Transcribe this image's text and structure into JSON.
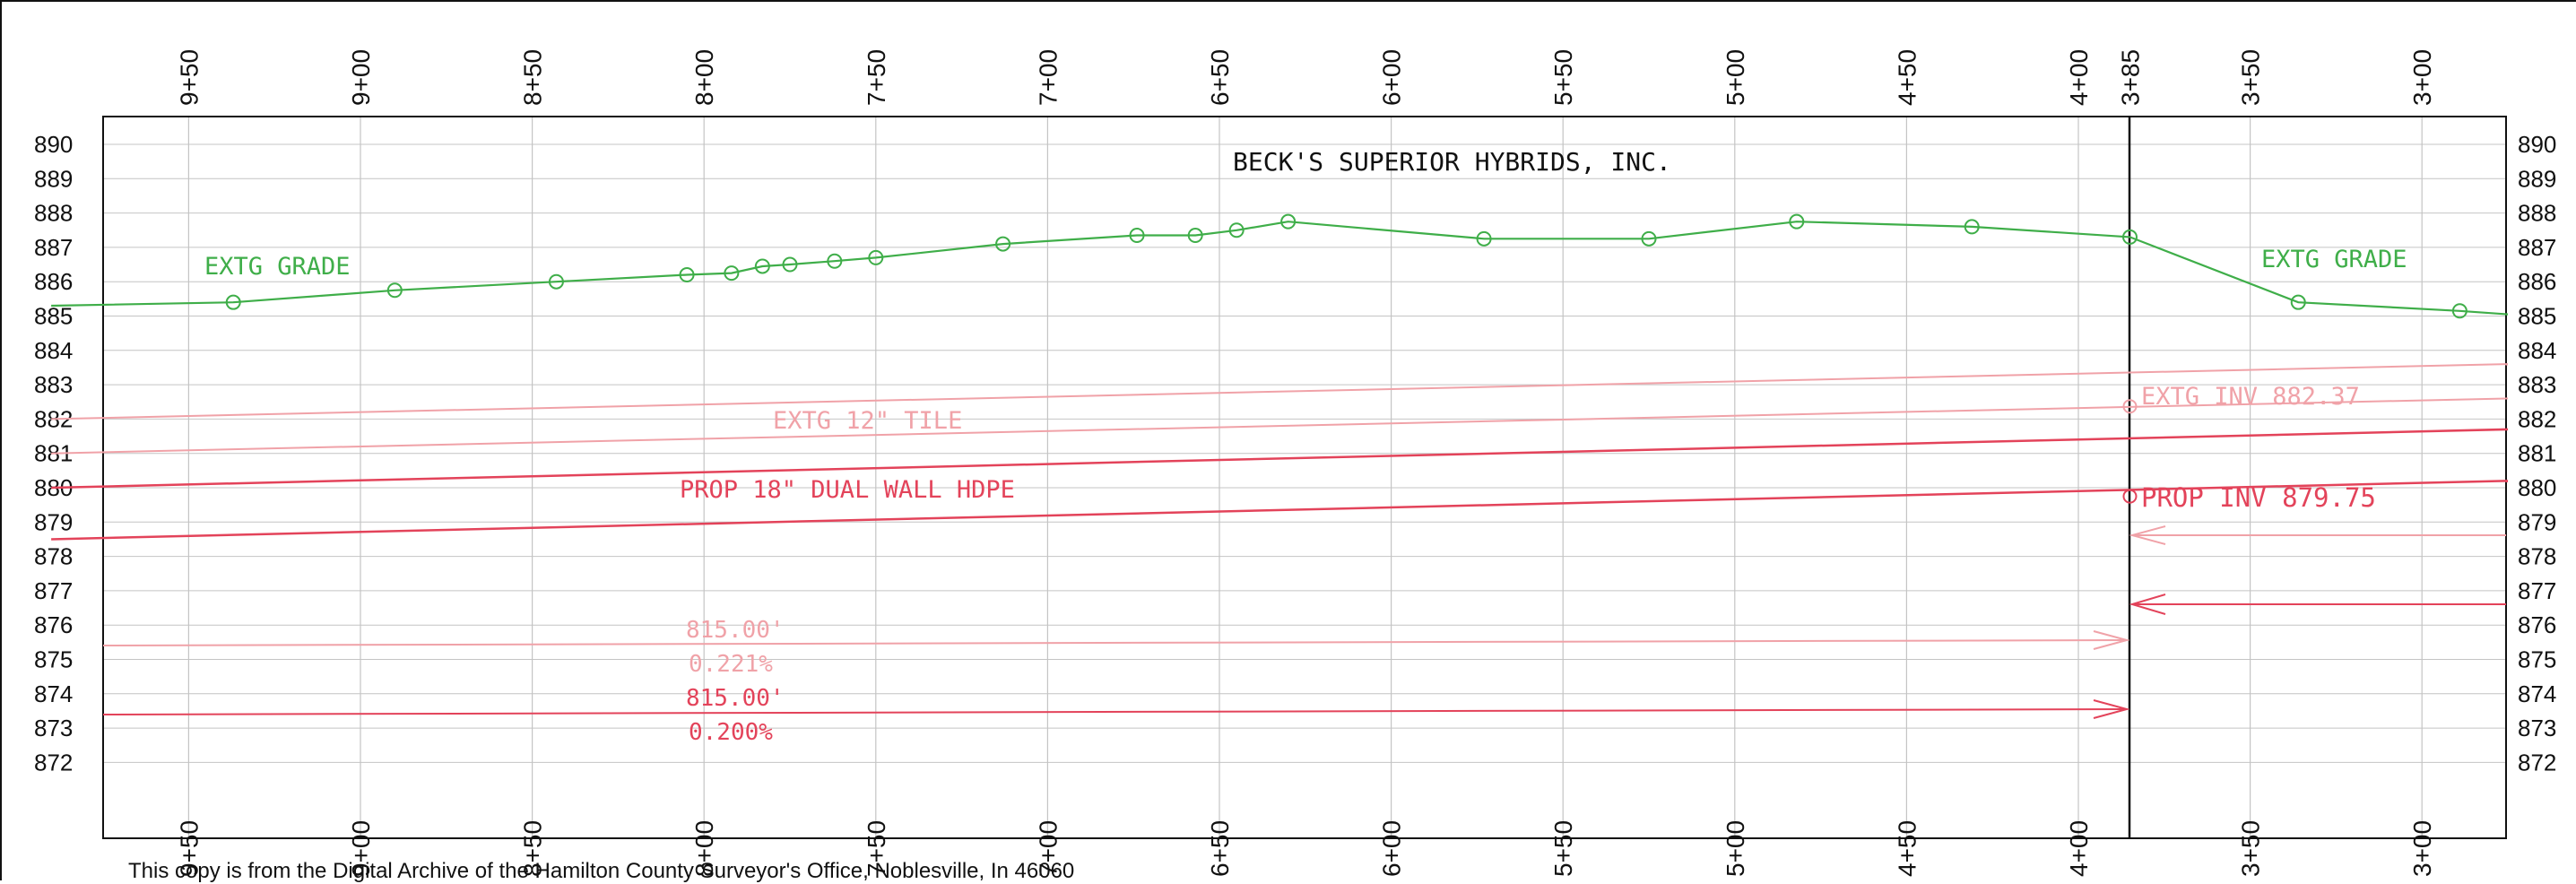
{
  "colors": {
    "frame": "#111111",
    "grid": "#c4c4c4",
    "grade": "#3fae49",
    "prop_pipe": "#e3435a",
    "extg_tile": "#f0a2a8"
  },
  "title": "BECK'S SUPERIOR HYBRIDS, INC.",
  "elevations_left": [
    "890",
    "889",
    "888",
    "887",
    "886",
    "885",
    "884",
    "883",
    "882",
    "881",
    "880",
    "879",
    "878",
    "877",
    "876",
    "875",
    "874",
    "873",
    "872"
  ],
  "elevations_right": [
    "890",
    "889",
    "888",
    "887",
    "886",
    "885",
    "884",
    "883",
    "882",
    "881",
    "880",
    "879",
    "878",
    "877",
    "876",
    "875",
    "874",
    "873",
    "872"
  ],
  "stations_top": [
    "9+50",
    "9+00",
    "8+50",
    "8+00",
    "7+50",
    "7+00",
    "6+50",
    "6+00",
    "5+50",
    "5+00",
    "4+50",
    "4+00",
    "3+85",
    "3+50",
    "3+00"
  ],
  "stations_bottom": [
    "9+50",
    "9+00",
    "8+50",
    "8+00",
    "7+50",
    "7+00",
    "6+50",
    "6+00",
    "5+50",
    "5+00",
    "4+50",
    "4+00",
    "3+50",
    "3+00"
  ],
  "labels": {
    "extg_grade_left": "EXTG GRADE",
    "extg_grade_right": "EXTG GRADE",
    "extg_tile": "EXTG 12\" TILE",
    "prop_pipe": "PROP 18\" DUAL WALL HDPE",
    "extg_inv": "EXTG INV 882.37",
    "prop_inv": "PROP INV 879.75",
    "extg_length": "815.00'",
    "extg_slope": "0.221%",
    "prop_length": "815.00'",
    "prop_slope": "0.200%"
  },
  "profile": {
    "grade_points": [
      {
        "station": 990,
        "elev": 885.3
      },
      {
        "station": 937,
        "elev": 885.4
      },
      {
        "station": 890,
        "elev": 885.75
      },
      {
        "station": 843,
        "elev": 886.0
      },
      {
        "station": 805,
        "elev": 886.2
      },
      {
        "station": 792,
        "elev": 886.25
      },
      {
        "station": 783,
        "elev": 886.45
      },
      {
        "station": 775,
        "elev": 886.5
      },
      {
        "station": 762,
        "elev": 886.6
      },
      {
        "station": 750,
        "elev": 886.7
      },
      {
        "station": 713,
        "elev": 887.1
      },
      {
        "station": 674,
        "elev": 887.35
      },
      {
        "station": 657,
        "elev": 887.35
      },
      {
        "station": 645,
        "elev": 887.5
      },
      {
        "station": 630,
        "elev": 887.75
      },
      {
        "station": 573,
        "elev": 887.25
      },
      {
        "station": 525,
        "elev": 887.25
      },
      {
        "station": 482,
        "elev": 887.75
      },
      {
        "station": 431,
        "elev": 887.6
      },
      {
        "station": 385,
        "elev": 887.3
      },
      {
        "station": 336,
        "elev": 885.4
      },
      {
        "station": 289,
        "elev": 885.15
      },
      {
        "station": 275,
        "elev": 885.05
      }
    ],
    "extg_tile": {
      "top": [
        {
          "station": 990,
          "elev": 882.0
        },
        {
          "station": 275,
          "elev": 883.6
        }
      ],
      "bottom": [
        {
          "station": 990,
          "elev": 881.0
        },
        {
          "station": 275,
          "elev": 882.6
        }
      ],
      "invert_point": {
        "station": 385,
        "elev": 882.37
      }
    },
    "prop_pipe": {
      "top": [
        {
          "station": 990,
          "elev": 880.0
        },
        {
          "station": 275,
          "elev": 881.7
        }
      ],
      "bottom": [
        {
          "station": 990,
          "elev": 878.5
        },
        {
          "station": 275,
          "elev": 880.2
        }
      ],
      "invert_point": {
        "station": 385,
        "elev": 879.75
      }
    }
  },
  "footer": "This copy is from the Digital Archive of the Hamilton County Surveyor's Office, Noblesville, In 46060"
}
